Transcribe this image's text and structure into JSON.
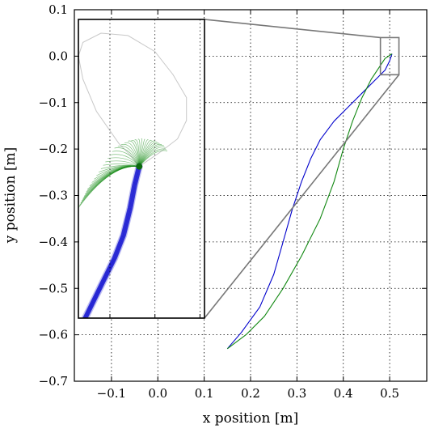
{
  "chart_data": {
    "type": "line",
    "title": "",
    "xlabel": "x position [m]",
    "ylabel": "y position [m]",
    "xlim": [
      -0.18,
      0.58
    ],
    "ylim": [
      -0.7,
      0.1
    ],
    "xticks": [
      -0.1,
      0.0,
      0.1,
      0.2,
      0.3,
      0.4,
      0.5
    ],
    "xtick_labels": [
      "−0.1",
      "0.0",
      "0.1",
      "0.2",
      "0.3",
      "0.4",
      "0.5"
    ],
    "yticks": [
      0.1,
      0.0,
      -0.1,
      -0.2,
      -0.3,
      -0.4,
      -0.5,
      -0.6,
      -0.7
    ],
    "ytick_labels": [
      "0.1",
      "0.0",
      "−0.1",
      "−0.2",
      "−0.3",
      "−0.4",
      "−0.5",
      "−0.6",
      "−0.7"
    ],
    "grid": true,
    "colors": {
      "blue": "#0000cc",
      "green": "#118811",
      "gray": "#777777",
      "faint": "#c8c8c8"
    },
    "series": [
      {
        "color": "blue",
        "x": [
          0.15,
          0.18,
          0.22,
          0.25,
          0.27,
          0.29,
          0.31,
          0.33,
          0.35,
          0.38,
          0.41,
          0.44,
          0.47,
          0.49,
          0.5,
          0.505
        ],
        "y": [
          -0.63,
          -0.595,
          -0.54,
          -0.47,
          -0.4,
          -0.33,
          -0.27,
          -0.22,
          -0.18,
          -0.14,
          -0.11,
          -0.08,
          -0.05,
          -0.03,
          -0.01,
          0.005
        ]
      },
      {
        "color": "green",
        "x": [
          0.15,
          0.19,
          0.23,
          0.27,
          0.31,
          0.35,
          0.38,
          0.4,
          0.42,
          0.44,
          0.46,
          0.48,
          0.49,
          0.505
        ],
        "y": [
          -0.63,
          -0.6,
          -0.56,
          -0.5,
          -0.43,
          -0.35,
          -0.27,
          -0.2,
          -0.14,
          -0.09,
          -0.05,
          -0.02,
          -0.005,
          0.005
        ]
      }
    ],
    "zoom_box": {
      "xlim": [
        0.48,
        0.52
      ],
      "ylim": [
        -0.04,
        0.04
      ]
    },
    "inset": {
      "xlim": [
        -0.17,
        0.11
      ],
      "ylim": [
        -0.57,
        0.08
      ],
      "xticks": [
        -0.1,
        0.0,
        0.1
      ],
      "center": [
        -0.035,
        -0.24
      ],
      "blue_path": {
        "x": [
          -0.035,
          -0.045,
          -0.055,
          -0.07,
          -0.09,
          -0.11,
          -0.13,
          -0.155
        ],
        "y": [
          -0.24,
          -0.28,
          -0.33,
          -0.39,
          -0.44,
          -0.48,
          -0.52,
          -0.57
        ]
      },
      "green_fan_tips": {
        "x": [
          -0.17,
          -0.16,
          -0.15,
          -0.13,
          -0.11,
          -0.09,
          -0.06,
          -0.03,
          0.0,
          0.02,
          0.03
        ],
        "y": [
          -0.33,
          -0.31,
          -0.29,
          -0.26,
          -0.23,
          -0.2,
          -0.185,
          -0.18,
          -0.185,
          -0.195,
          -0.21
        ]
      },
      "faint_loop": {
        "x": [
          -0.035,
          -0.05,
          -0.08,
          -0.13,
          -0.16,
          -0.17,
          -0.16,
          -0.12,
          -0.06,
          0.0,
          0.04,
          0.07,
          0.07,
          0.05,
          0.01,
          -0.035
        ],
        "y": [
          -0.24,
          -0.22,
          -0.19,
          -0.12,
          -0.05,
          0.0,
          0.03,
          0.05,
          0.045,
          0.01,
          -0.04,
          -0.09,
          -0.14,
          -0.18,
          -0.21,
          -0.24
        ]
      }
    }
  }
}
